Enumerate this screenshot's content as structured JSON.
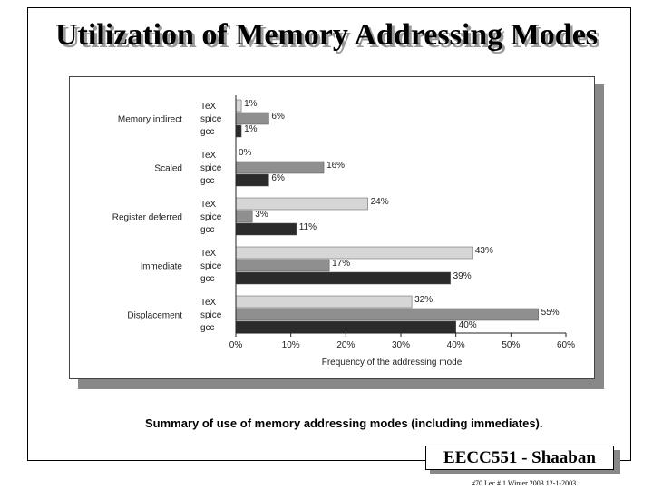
{
  "slide": {
    "title": "Utilization of Memory Addressing Modes",
    "caption": "Summary of use of memory addressing modes (including immediates).",
    "footer_badge": "EECC551 - Shaaban",
    "footer_note": "#70   Lec # 1   Winter 2003   12-1-2003"
  },
  "chart_data": {
    "type": "bar",
    "orientation": "horizontal",
    "xlabel": "Frequency of the addressing mode",
    "xlim": [
      0,
      60
    ],
    "x_ticks": [
      "0%",
      "10%",
      "20%",
      "30%",
      "40%",
      "50%",
      "60%"
    ],
    "grid": false,
    "categories": [
      "Memory indirect",
      "Scaled",
      "Register deferred",
      "Immediate",
      "Displacement"
    ],
    "series": [
      {
        "name": "TeX",
        "color": "#d6d6d6",
        "values": [
          1,
          0,
          24,
          43,
          32
        ]
      },
      {
        "name": "spice",
        "color": "#8f8f8f",
        "values": [
          6,
          16,
          3,
          17,
          55
        ]
      },
      {
        "name": "gcc",
        "color": "#2b2b2b",
        "values": [
          1,
          6,
          11,
          39,
          40
        ]
      }
    ],
    "value_suffix": "%"
  }
}
